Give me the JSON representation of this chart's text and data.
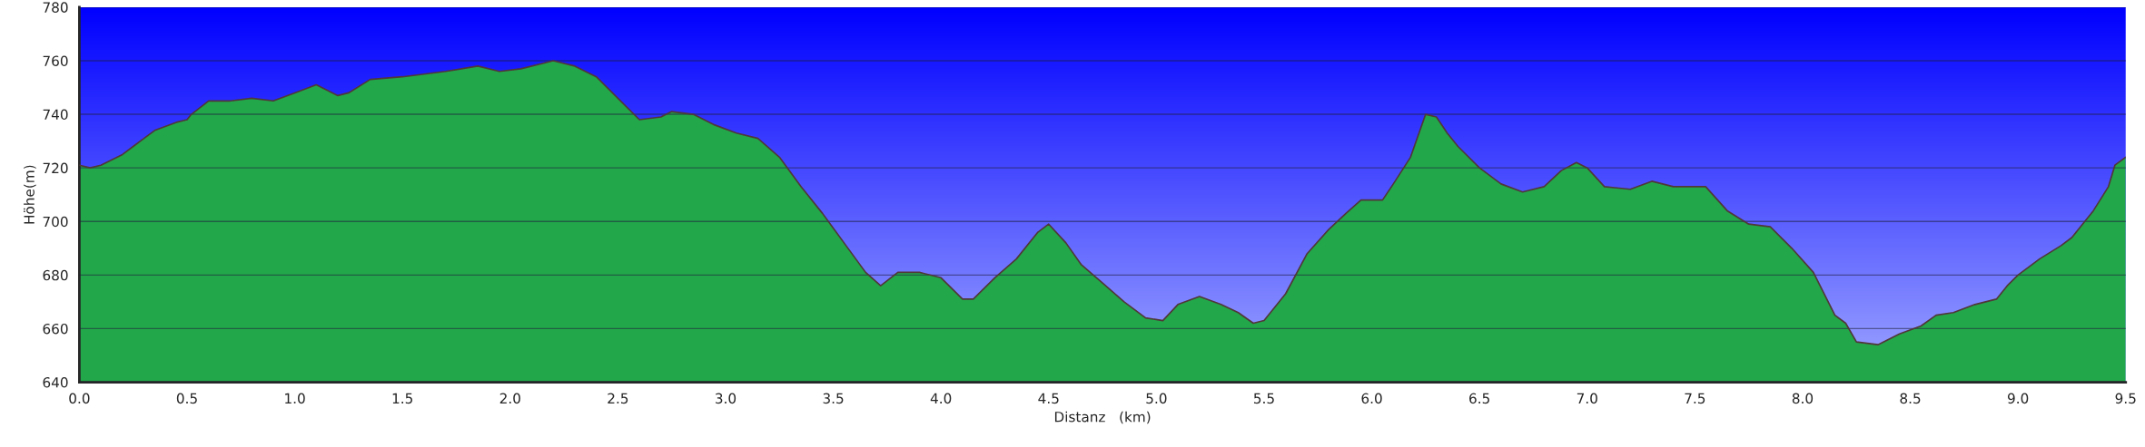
{
  "chart_data": {
    "type": "area",
    "xlabel": "Distanz   (km)",
    "ylabel": "Höhe(m)",
    "x": [
      0.0,
      0.05,
      0.1,
      0.2,
      0.25,
      0.3,
      0.35,
      0.45,
      0.5,
      0.52,
      0.6,
      0.7,
      0.8,
      0.9,
      1.0,
      1.1,
      1.2,
      1.25,
      1.35,
      1.5,
      1.7,
      1.85,
      1.95,
      2.05,
      2.2,
      2.3,
      2.4,
      2.5,
      2.6,
      2.7,
      2.75,
      2.85,
      2.95,
      3.05,
      3.15,
      3.25,
      3.35,
      3.45,
      3.55,
      3.65,
      3.72,
      3.8,
      3.9,
      4.0,
      4.1,
      4.15,
      4.25,
      4.35,
      4.45,
      4.5,
      4.58,
      4.65,
      4.75,
      4.85,
      4.95,
      5.03,
      5.1,
      5.2,
      5.3,
      5.38,
      5.45,
      5.5,
      5.6,
      5.7,
      5.8,
      5.88,
      5.95,
      6.05,
      6.1,
      6.18,
      6.25,
      6.3,
      6.35,
      6.4,
      6.5,
      6.6,
      6.7,
      6.8,
      6.88,
      6.95,
      7.0,
      7.08,
      7.2,
      7.3,
      7.4,
      7.55,
      7.65,
      7.75,
      7.85,
      7.95,
      8.05,
      8.15,
      8.2,
      8.25,
      8.35,
      8.45,
      8.55,
      8.62,
      8.7,
      8.8,
      8.9,
      8.95,
      9.0,
      9.1,
      9.2,
      9.25,
      9.35,
      9.42,
      9.45,
      9.5
    ],
    "series": [
      {
        "color": "#22a84a",
        "values": [
          721,
          720,
          721,
          725,
          728,
          731,
          734,
          737,
          738,
          740,
          745,
          745,
          746,
          745,
          748,
          751,
          747,
          748,
          753,
          754,
          756,
          758,
          756,
          757,
          760,
          758,
          754,
          746,
          738,
          739,
          741,
          740,
          736,
          733,
          731,
          724,
          713,
          703,
          692,
          681,
          676,
          681,
          681,
          679,
          671,
          671,
          679,
          686,
          696,
          699,
          692,
          684,
          677,
          670,
          664,
          663,
          669,
          672,
          669,
          666,
          662,
          663,
          673,
          688,
          697,
          703,
          708,
          708,
          714,
          724,
          740,
          739,
          733,
          728,
          720,
          714,
          711,
          713,
          719,
          722,
          720,
          713,
          712,
          715,
          713,
          713,
          704,
          699,
          698,
          690,
          681,
          665,
          662,
          655,
          654,
          658,
          661,
          665,
          666,
          669,
          671,
          676,
          680,
          686,
          691,
          694,
          704,
          713,
          721,
          724
        ]
      }
    ],
    "xlim": [
      0,
      9.5
    ],
    "ylim": [
      640,
      780
    ],
    "xticks": [
      {
        "value": 0,
        "label": "0.0"
      },
      {
        "value": 0.5,
        "label": "0.5"
      },
      {
        "value": 1,
        "label": "1.0"
      },
      {
        "value": 1.5,
        "label": "1.5"
      },
      {
        "value": 2,
        "label": "2.0"
      },
      {
        "value": 2.5,
        "label": "2.5"
      },
      {
        "value": 3,
        "label": "3.0"
      },
      {
        "value": 3.5,
        "label": "3.5"
      },
      {
        "value": 4,
        "label": "4.0"
      },
      {
        "value": 4.5,
        "label": "4.5"
      },
      {
        "value": 5,
        "label": "5.0"
      },
      {
        "value": 5.5,
        "label": "5.5"
      },
      {
        "value": 6,
        "label": "6.0"
      },
      {
        "value": 6.5,
        "label": "6.5"
      },
      {
        "value": 7,
        "label": "7.0"
      },
      {
        "value": 7.5,
        "label": "7.5"
      },
      {
        "value": 8,
        "label": "8.0"
      },
      {
        "value": 8.5,
        "label": "8.5"
      },
      {
        "value": 9,
        "label": "9.0"
      },
      {
        "value": 9.5,
        "label": "9.5"
      }
    ],
    "yticks": [
      640,
      660,
      680,
      700,
      720,
      740,
      760,
      780
    ],
    "grid": "y"
  }
}
